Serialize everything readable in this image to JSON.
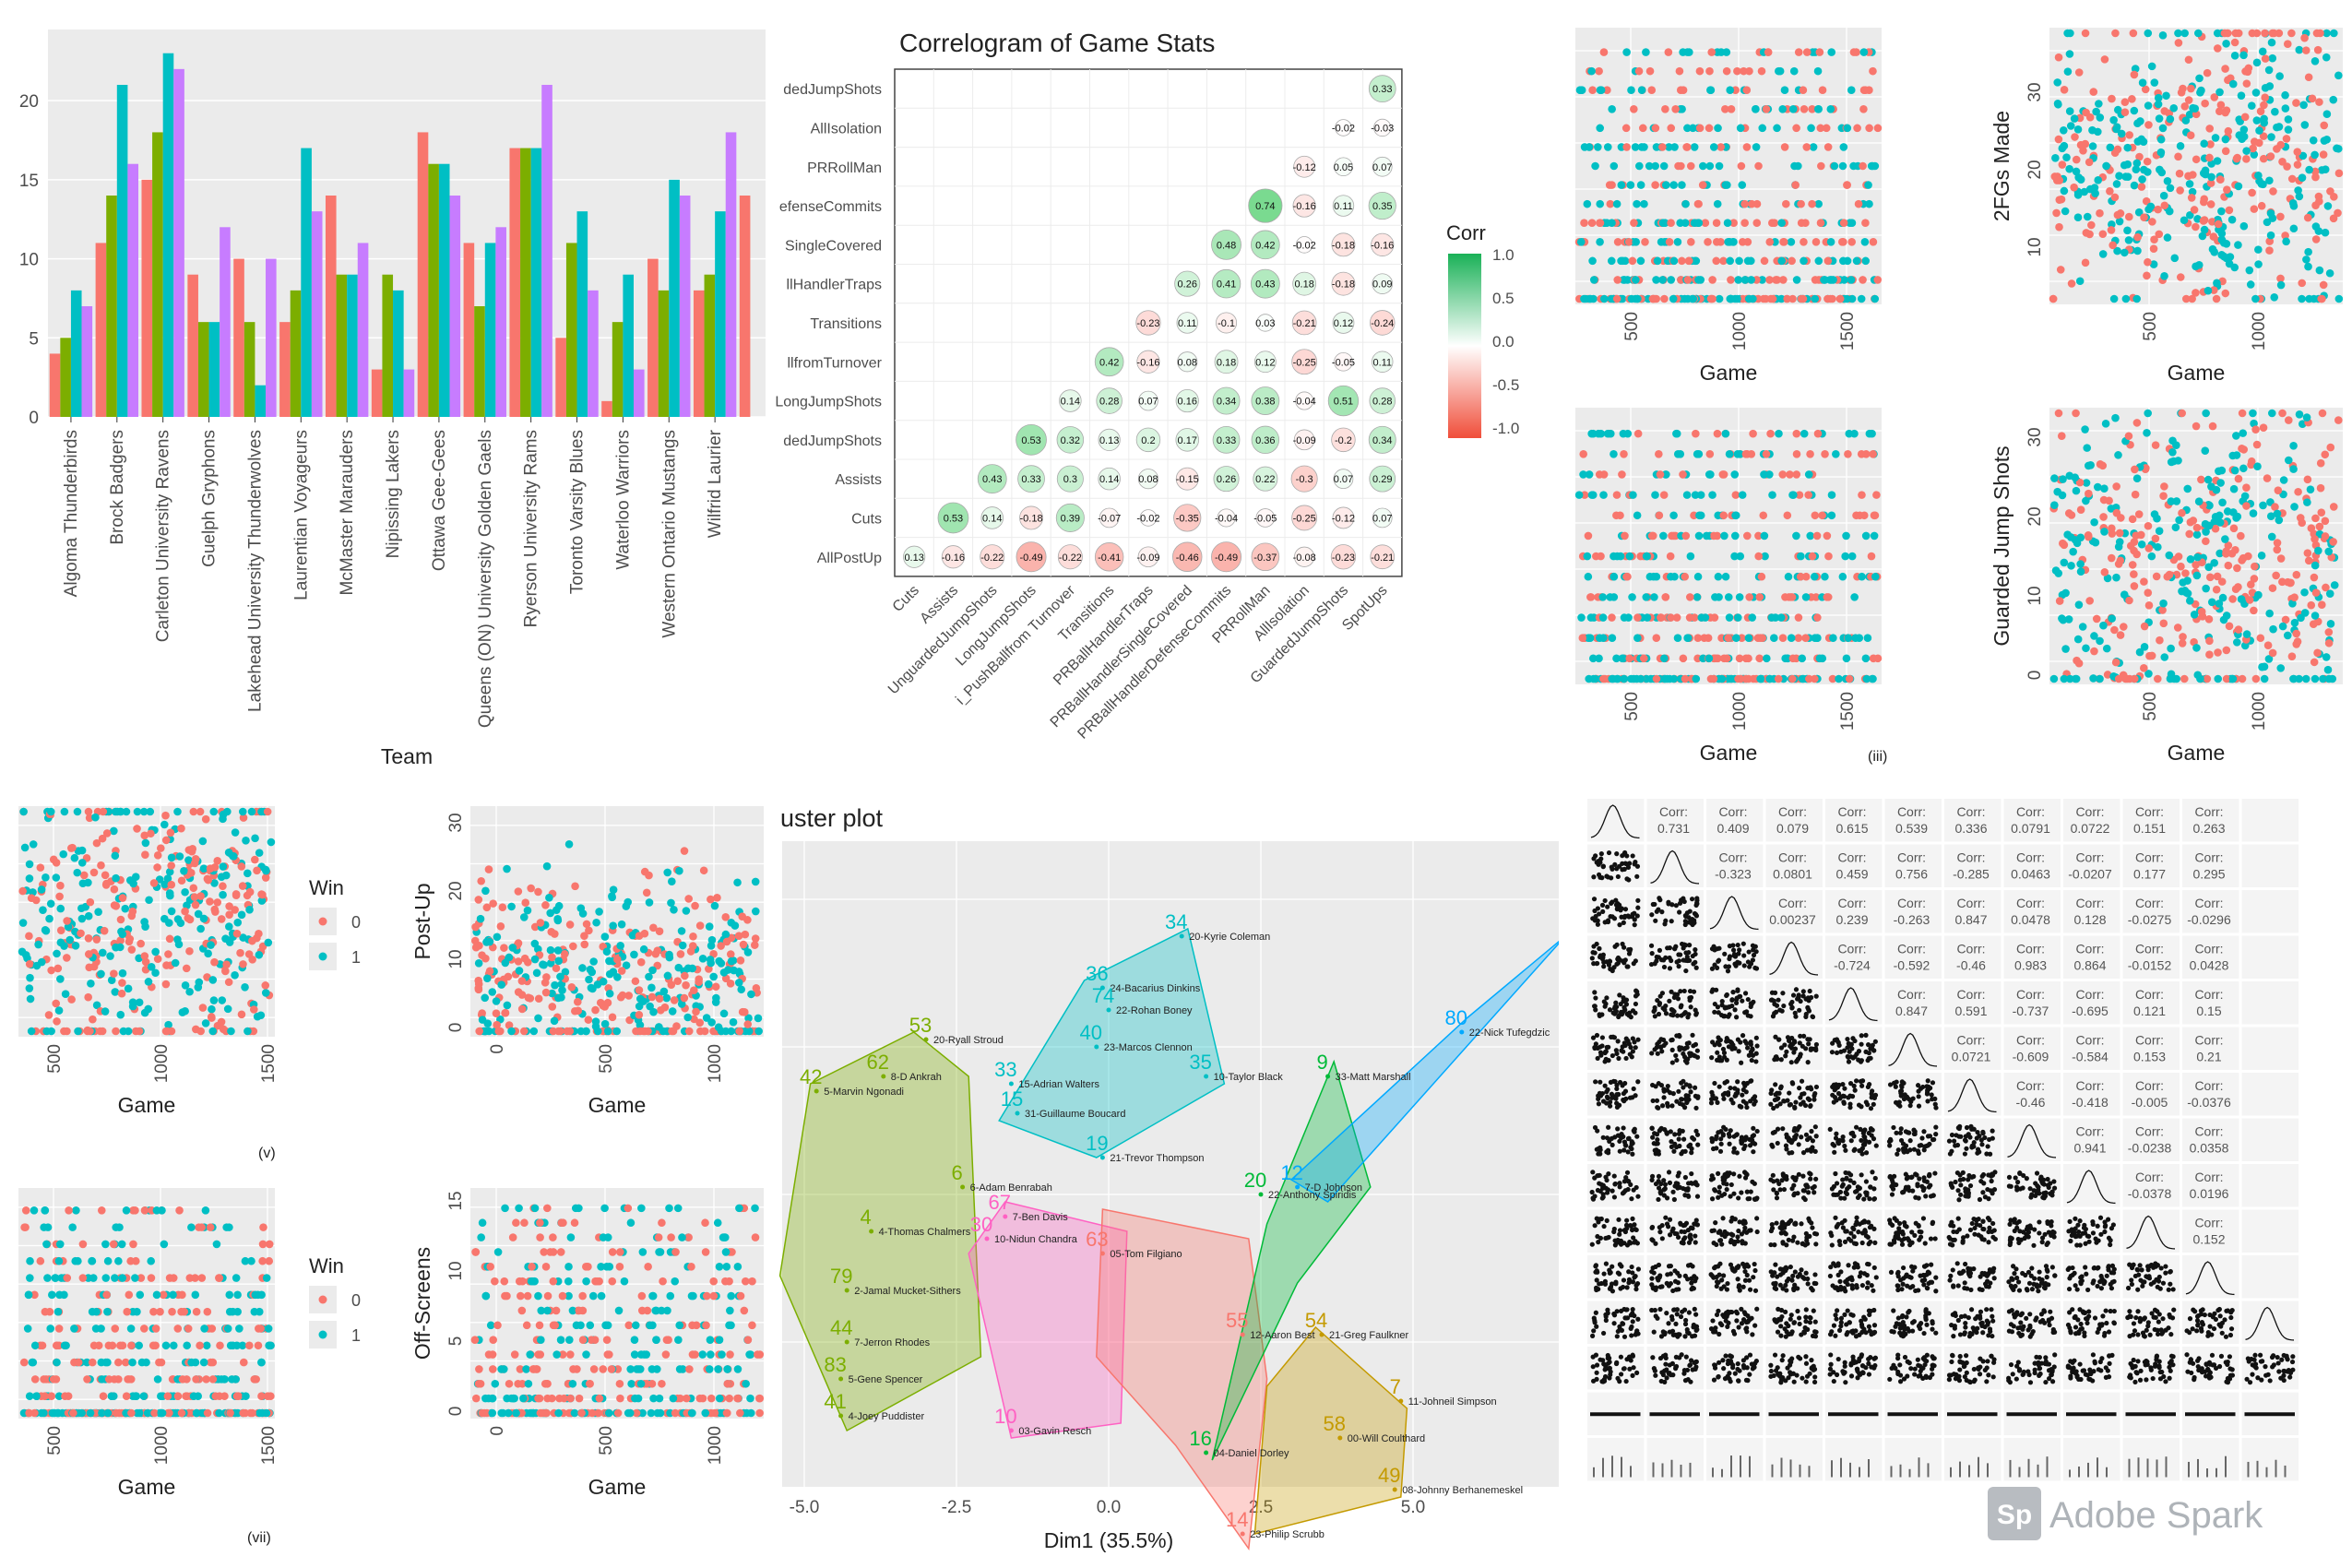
{
  "colors": {
    "panel": "#ebebeb",
    "grid": "#ffffff",
    "red": "#f8766d",
    "teal": "#00bfc4",
    "ink": "#4d4d4d",
    "green": "#7cae00",
    "purple": "#c77cff"
  },
  "bar_chart": {
    "xlabel": "Team",
    "yticks": [
      "0",
      "5",
      "10",
      "15",
      "20"
    ],
    "series_colors": [
      "#f8766d",
      "#7cae00",
      "#00bfc4",
      "#c77cff"
    ],
    "teams": [
      {
        "name": "Algoma Thunderbirds",
        "values": [
          4,
          5,
          8,
          7
        ]
      },
      {
        "name": "Brock Badgers",
        "values": [
          11,
          14,
          21,
          16
        ]
      },
      {
        "name": "Carleton University Ravens",
        "values": [
          15,
          18,
          23,
          22
        ]
      },
      {
        "name": "Guelph Gryphons",
        "values": [
          9,
          6,
          6,
          12
        ]
      },
      {
        "name": "Lakehead University Thunderwolves",
        "values": [
          10,
          6,
          2,
          10
        ]
      },
      {
        "name": "Laurentian Voyageurs",
        "values": [
          6,
          8,
          17,
          13
        ]
      },
      {
        "name": "McMaster Marauders",
        "values": [
          14,
          9,
          9,
          11
        ]
      },
      {
        "name": "Nipissing Lakers",
        "values": [
          3,
          9,
          8,
          3
        ]
      },
      {
        "name": "Ottawa Gee-Gees",
        "values": [
          18,
          16,
          16,
          14
        ]
      },
      {
        "name": "Queens (ON) University Golden Gaels",
        "values": [
          11,
          7,
          11,
          12
        ]
      },
      {
        "name": "Ryerson University Rams",
        "values": [
          17,
          17,
          17,
          21
        ]
      },
      {
        "name": "Toronto Varsity Blues",
        "values": [
          5,
          11,
          13,
          8
        ]
      },
      {
        "name": "Waterloo Warriors",
        "values": [
          1,
          6,
          9,
          3
        ]
      },
      {
        "name": "Western Ontario Mustangs",
        "values": [
          10,
          8,
          15,
          14
        ]
      },
      {
        "name": "Wilfrid Laurier",
        "values": [
          8,
          9,
          13,
          18
        ]
      },
      {
        "name": "",
        "values": [
          14
        ]
      }
    ]
  },
  "correlogram": {
    "title": "Correlogram of Game Stats",
    "legend_title": "Corr",
    "legend_ticks": [
      "1.0",
      "0.5",
      "0.0",
      "-0.5",
      "-1.0"
    ],
    "row_labels": [
      "dedJumpShots",
      "AllIsolation",
      "PRRollMan",
      "efenseCommits",
      "SingleCovered",
      "llHandlerTraps",
      "Transitions",
      "llfromTurnover",
      "LongJumpShots",
      "dedJumpShots",
      "Assists",
      "Cuts",
      "AllPostUp"
    ],
    "col_labels": [
      "Cuts",
      "Assists",
      "UnguardedJumpShots",
      "LongJumpShots",
      "i_PushBallfrom Turnover",
      "Transitions",
      "PRBallHandlerTraps",
      "PRBallHandlerSingleCovered",
      "PRBallHandlerDefenseCommits",
      "PRRollMan",
      "AllIsolation",
      "GuardedJumpShots",
      "SpotUps"
    ],
    "cells": [
      [
        null,
        null,
        null,
        null,
        null,
        null,
        null,
        null,
        null,
        null,
        null,
        null,
        0.33
      ],
      [
        null,
        null,
        null,
        null,
        null,
        null,
        null,
        null,
        null,
        null,
        null,
        -0.02,
        -0.03
      ],
      [
        null,
        null,
        null,
        null,
        null,
        null,
        null,
        null,
        null,
        null,
        -0.12,
        0.05,
        0.07
      ],
      [
        null,
        null,
        null,
        null,
        null,
        null,
        null,
        null,
        null,
        0.74,
        -0.16,
        0.11,
        0.35
      ],
      [
        null,
        null,
        null,
        null,
        null,
        null,
        null,
        null,
        0.48,
        0.42,
        -0.02,
        -0.18,
        -0.16
      ],
      [
        null,
        null,
        null,
        null,
        null,
        null,
        null,
        0.26,
        0.41,
        0.43,
        0.18,
        -0.18,
        0.09
      ],
      [
        null,
        null,
        null,
        null,
        null,
        null,
        -0.23,
        0.11,
        -0.1,
        0.03,
        -0.21,
        0.12,
        -0.24
      ],
      [
        null,
        null,
        null,
        null,
        null,
        0.42,
        -0.16,
        0.08,
        0.18,
        0.12,
        -0.25,
        -0.05,
        0.11
      ],
      [
        null,
        null,
        null,
        null,
        0.14,
        0.28,
        0.07,
        0.16,
        0.34,
        0.38,
        -0.04,
        0.51,
        0.28
      ],
      [
        null,
        null,
        null,
        0.53,
        0.32,
        0.13,
        0.2,
        0.17,
        0.33,
        0.36,
        -0.09,
        -0.2,
        0.34
      ],
      [
        null,
        null,
        0.43,
        0.33,
        0.3,
        0.14,
        0.08,
        -0.15,
        0.26,
        0.22,
        -0.3,
        0.07,
        0.29
      ],
      [
        null,
        0.53,
        0.14,
        -0.18,
        0.39,
        -0.07,
        -0.02,
        -0.35,
        -0.04,
        -0.05,
        -0.25,
        -0.12,
        0.07
      ],
      [
        0.13,
        -0.16,
        -0.22,
        -0.49,
        -0.22,
        -0.41,
        -0.09,
        -0.46,
        -0.49,
        -0.37,
        -0.08,
        -0.23,
        -0.21
      ]
    ]
  },
  "scatter": {
    "xlabel": "Game",
    "legend_title": "Win",
    "legend_items": [
      "0",
      "1"
    ],
    "tl1": {
      "xticks": [
        "500",
        "1000",
        "1500"
      ],
      "ylabel": ""
    },
    "tl2": {
      "xticks": [
        "500",
        "1000"
      ],
      "ylabel": "2FGs Made",
      "yticks": [
        "10",
        "20",
        "30"
      ]
    },
    "ml1": {
      "xticks": [
        "500",
        "1000",
        "1500"
      ],
      "ylabel": "",
      "caption": "(iii)"
    },
    "ml2": {
      "xticks": [
        "500",
        "1000"
      ],
      "ylabel": "Guarded Jump Shots",
      "yticks": [
        "0",
        "10",
        "20",
        "30"
      ]
    },
    "bl1": {
      "xticks": [
        "500",
        "1000",
        "1500"
      ],
      "ylabel": "",
      "caption": "(v)"
    },
    "bl2": {
      "xticks": [
        "0",
        "500",
        "1000"
      ],
      "ylabel": "Post-Up",
      "yticks": [
        "0",
        "10",
        "20",
        "30"
      ]
    },
    "bb1": {
      "xticks": [
        "500",
        "1000",
        "1500"
      ],
      "ylabel": "",
      "caption": "(vii)"
    },
    "bb2": {
      "xticks": [
        "0",
        "500",
        "1000"
      ],
      "ylabel": "Off-Screens",
      "yticks": [
        "0",
        "5",
        "10",
        "15"
      ]
    }
  },
  "cluster": {
    "title": "uster plot",
    "xlabel": "Dim1 (35.5%)",
    "xticks": [
      "-5.0",
      "-2.5",
      "0.0",
      "2.5",
      "5.0"
    ],
    "labels": [
      {
        "n": "34",
        "t": "20-Kyrie Coleman",
        "x": 1.2,
        "y": 3.5,
        "c": "#00bfc4"
      },
      {
        "n": "36",
        "t": "24-Bacarius Dinkins",
        "x": -0.1,
        "y": 2.8,
        "c": "#00bfc4"
      },
      {
        "n": "74",
        "t": "22-Rohan Boney",
        "x": 0.0,
        "y": 2.5,
        "c": "#00bfc4"
      },
      {
        "n": "40",
        "t": "23-Marcos Clennon",
        "x": -0.2,
        "y": 2.0,
        "c": "#00bfc4"
      },
      {
        "n": "35",
        "t": "10-Taylor Black",
        "x": 1.6,
        "y": 1.6,
        "c": "#00bfc4"
      },
      {
        "n": "33",
        "t": "15-Adrian Walters",
        "x": -1.6,
        "y": 1.5,
        "c": "#00bfc4"
      },
      {
        "n": "15",
        "t": "31-Guillaume Boucard",
        "x": -1.5,
        "y": 1.1,
        "c": "#00bfc4"
      },
      {
        "n": "19",
        "t": "21-Trevor Thompson",
        "x": -0.1,
        "y": 0.5,
        "c": "#00bfc4"
      },
      {
        "n": "53",
        "t": "20-Ryall Stroud",
        "x": -3.0,
        "y": 2.1,
        "c": "#7cae00"
      },
      {
        "n": "42",
        "t": "5-Marvin Ngonadi",
        "x": -4.8,
        "y": 1.4,
        "c": "#7cae00"
      },
      {
        "n": "62",
        "t": "8-D Ankrah",
        "x": -3.7,
        "y": 1.6,
        "c": "#7cae00"
      },
      {
        "n": "6",
        "t": "6-Adam Benrabah",
        "x": -2.4,
        "y": 0.1,
        "c": "#7cae00"
      },
      {
        "n": "4",
        "t": "4-Thomas Chalmers",
        "x": -3.9,
        "y": -0.5,
        "c": "#7cae00"
      },
      {
        "n": "79",
        "t": "2-Jamal Mucket-Sithers",
        "x": -4.3,
        "y": -1.3,
        "c": "#7cae00"
      },
      {
        "n": "44",
        "t": "7-Jerron Rhodes",
        "x": -4.3,
        "y": -2.0,
        "c": "#7cae00"
      },
      {
        "n": "83",
        "t": "5-Gene Spencer",
        "x": -4.4,
        "y": -2.5,
        "c": "#7cae00"
      },
      {
        "n": "41",
        "t": "4-Joey Puddister",
        "x": -4.4,
        "y": -3.0,
        "c": "#7cae00"
      },
      {
        "n": "67",
        "t": "7-Ben Davis",
        "x": -1.7,
        "y": -0.3,
        "c": "#ff61c3"
      },
      {
        "n": "30",
        "t": "10-Nidun Chandra",
        "x": -2.0,
        "y": -0.6,
        "c": "#ff61c3"
      },
      {
        "n": "10",
        "t": "03-Gavin Resch",
        "x": -1.6,
        "y": -3.2,
        "c": "#ff61c3"
      },
      {
        "n": "63",
        "t": "05-Tom Filgiano",
        "x": -0.1,
        "y": -0.8,
        "c": "#f8766d"
      },
      {
        "n": "55",
        "t": "12-Aaron Best",
        "x": 2.2,
        "y": -1.9,
        "c": "#f8766d"
      },
      {
        "n": "14",
        "t": "23-Philip Scrubb",
        "x": 2.2,
        "y": -4.6,
        "c": "#f8766d"
      },
      {
        "n": "20",
        "t": "22-Anthony Spiridis",
        "x": 2.5,
        "y": 0.0,
        "c": "#00ba38"
      },
      {
        "n": "16",
        "t": "04-Daniel Dorley",
        "x": 1.6,
        "y": -3.5,
        "c": "#00ba38"
      },
      {
        "n": "9",
        "t": "33-Matt Marshall",
        "x": 3.6,
        "y": 1.6,
        "c": "#00ba38"
      },
      {
        "n": "12",
        "t": "7-D Johnson",
        "x": 3.1,
        "y": 0.1,
        "c": "#00a9ff"
      },
      {
        "n": "80",
        "t": "22-Nick Tufegdzic",
        "x": 5.8,
        "y": 2.2,
        "c": "#00a9ff"
      },
      {
        "n": "54",
        "t": "21-Greg Faulkner",
        "x": 3.5,
        "y": -1.9,
        "c": "#c49a00"
      },
      {
        "n": "7",
        "t": "11-Johneil Simpson",
        "x": 4.8,
        "y": -2.8,
        "c": "#c49a00"
      },
      {
        "n": "49",
        "t": "08-Johnny Berhanemeskel",
        "x": 4.7,
        "y": -4.0,
        "c": "#c49a00"
      },
      {
        "n": "58",
        "t": "00-Will Coulthard",
        "x": 3.8,
        "y": -3.3,
        "c": "#c49a00"
      }
    ]
  },
  "pairs": {
    "corr_label": "Corr:",
    "rows": [
      [
        "0.731",
        "0.409",
        "0.079",
        "0.615",
        "0.539",
        "0.336",
        "0.0791",
        "0.0722",
        "0.151",
        "0.263"
      ],
      [
        "-0.323",
        "0.0801",
        "0.459",
        "0.756",
        "-0.285",
        "0.0463",
        "-0.0207",
        "0.177",
        "0.295"
      ],
      [
        "0.00237",
        "0.239",
        "-0.263",
        "0.847",
        "0.0478",
        "0.128",
        "-0.0275",
        "-0.0296"
      ],
      [
        "-0.724",
        "-0.592",
        "-0.46",
        "0.983",
        "0.864",
        "-0.0152",
        "0.0428"
      ],
      [
        "0.847",
        "0.591",
        "-0.737",
        "-0.695",
        "0.121",
        "0.15"
      ],
      [
        "0.0721",
        "-0.609",
        "-0.584",
        "0.153",
        "0.21"
      ],
      [
        "-0.46",
        "-0.418",
        "-0.005",
        "-0.0376"
      ],
      [
        "0.941",
        "-0.0238",
        "0.0358"
      ],
      [
        "-0.0378",
        "0.0196"
      ],
      [
        "0.152"
      ]
    ],
    "watermark": "Adobe Spark",
    "watermark_badge": "Sp"
  }
}
